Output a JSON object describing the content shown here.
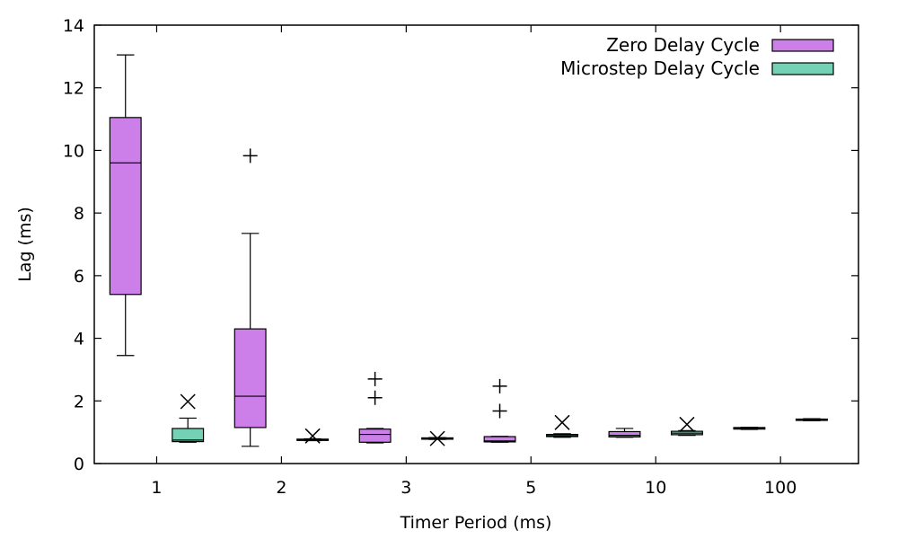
{
  "chart_data": {
    "type": "boxplot",
    "xlabel": "Timer Period (ms)",
    "ylabel": "Lag (ms)",
    "ylim": [
      0,
      14
    ],
    "yticks": [
      0,
      2,
      4,
      6,
      8,
      10,
      12,
      14
    ],
    "categories": [
      "1",
      "2",
      "3",
      "5",
      "10",
      "100"
    ],
    "grid": false,
    "legend_position": "top-right",
    "series": [
      {
        "name": "Zero Delay Cycle",
        "color": "#cc7fe8",
        "outlier_marker": "plus",
        "boxes": [
          {
            "whisker_low": 3.45,
            "q1": 5.4,
            "median": 9.6,
            "q3": 11.05,
            "whisker_high": 13.05,
            "outliers": []
          },
          {
            "whisker_low": 0.55,
            "q1": 1.15,
            "median": 2.15,
            "q3": 4.3,
            "whisker_high": 7.35,
            "outliers": [
              9.83
            ]
          },
          {
            "whisker_low": 0.66,
            "q1": 0.68,
            "median": 0.93,
            "q3": 1.1,
            "whisker_high": 1.12,
            "outliers": [
              2.1,
              2.7
            ]
          },
          {
            "whisker_low": 0.68,
            "q1": 0.69,
            "median": 0.72,
            "q3": 0.86,
            "whisker_high": 0.87,
            "outliers": [
              1.68,
              2.47
            ]
          },
          {
            "whisker_low": 0.84,
            "q1": 0.85,
            "median": 0.9,
            "q3": 1.02,
            "whisker_high": 1.12,
            "outliers": []
          },
          {
            "whisker_low": 1.09,
            "q1": 1.1,
            "median": 1.13,
            "q3": 1.15,
            "whisker_high": 1.16,
            "outliers": []
          }
        ]
      },
      {
        "name": "Microstep Delay Cycle",
        "color": "#73d2b4",
        "outlier_marker": "cross",
        "boxes": [
          {
            "whisker_low": 0.68,
            "q1": 0.7,
            "median": 0.75,
            "q3": 1.12,
            "whisker_high": 1.45,
            "outliers": [
              1.98
            ]
          },
          {
            "whisker_low": 0.73,
            "q1": 0.74,
            "median": 0.76,
            "q3": 0.78,
            "whisker_high": 0.79,
            "outliers": [
              0.88
            ]
          },
          {
            "whisker_low": 0.77,
            "q1": 0.78,
            "median": 0.8,
            "q3": 0.82,
            "whisker_high": 0.83,
            "outliers": [
              0.8
            ]
          },
          {
            "whisker_low": 0.84,
            "q1": 0.86,
            "median": 0.89,
            "q3": 0.93,
            "whisker_high": 0.95,
            "outliers": [
              1.31
            ]
          },
          {
            "whisker_low": 0.9,
            "q1": 0.92,
            "median": 0.97,
            "q3": 1.03,
            "whisker_high": 1.05,
            "outliers": [
              1.25
            ]
          },
          {
            "whisker_low": 1.37,
            "q1": 1.38,
            "median": 1.4,
            "q3": 1.42,
            "whisker_high": 1.43,
            "outliers": []
          }
        ]
      }
    ]
  }
}
